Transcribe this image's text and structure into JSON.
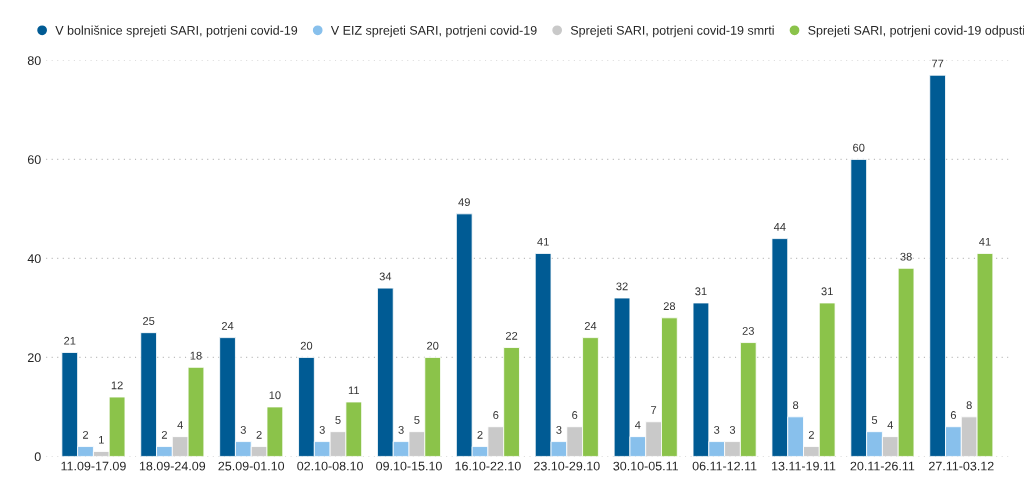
{
  "chart_data": {
    "type": "bar",
    "categories": [
      "11.09-17.09",
      "18.09-24.09",
      "25.09-01.10",
      "02.10-08.10",
      "09.10-15.10",
      "16.10-22.10",
      "23.10-29.10",
      "30.10-05.11",
      "06.11-12.11",
      "13.11-19.11",
      "20.11-26.11",
      "27.11-03.12"
    ],
    "series": [
      {
        "name": "V bolnišnice sprejeti SARI, potrjeni covid-19",
        "color": "#005b94",
        "values": [
          21,
          25,
          24,
          20,
          34,
          49,
          41,
          32,
          31,
          44,
          60,
          77
        ]
      },
      {
        "name": "V EIZ sprejeti SARI, potrjeni covid-19",
        "color": "#88c0ec",
        "values": [
          2,
          2,
          3,
          3,
          3,
          2,
          3,
          4,
          3,
          8,
          5,
          6
        ]
      },
      {
        "name": "Sprejeti SARI, potrjeni covid-19 smrti",
        "color": "#c9c9c9",
        "values": [
          1,
          4,
          2,
          5,
          5,
          6,
          6,
          7,
          3,
          2,
          4,
          8
        ]
      },
      {
        "name": "Sprejeti SARI, potrjeni covid-19 odpusti",
        "color": "#8bc34a",
        "values": [
          12,
          18,
          10,
          11,
          20,
          22,
          24,
          28,
          23,
          31,
          38,
          41
        ]
      }
    ],
    "ylim": [
      0,
      80
    ],
    "yticks": [
      0,
      20,
      40,
      60,
      80
    ],
    "grid": "y",
    "legend": "top",
    "data_labels": true
  }
}
